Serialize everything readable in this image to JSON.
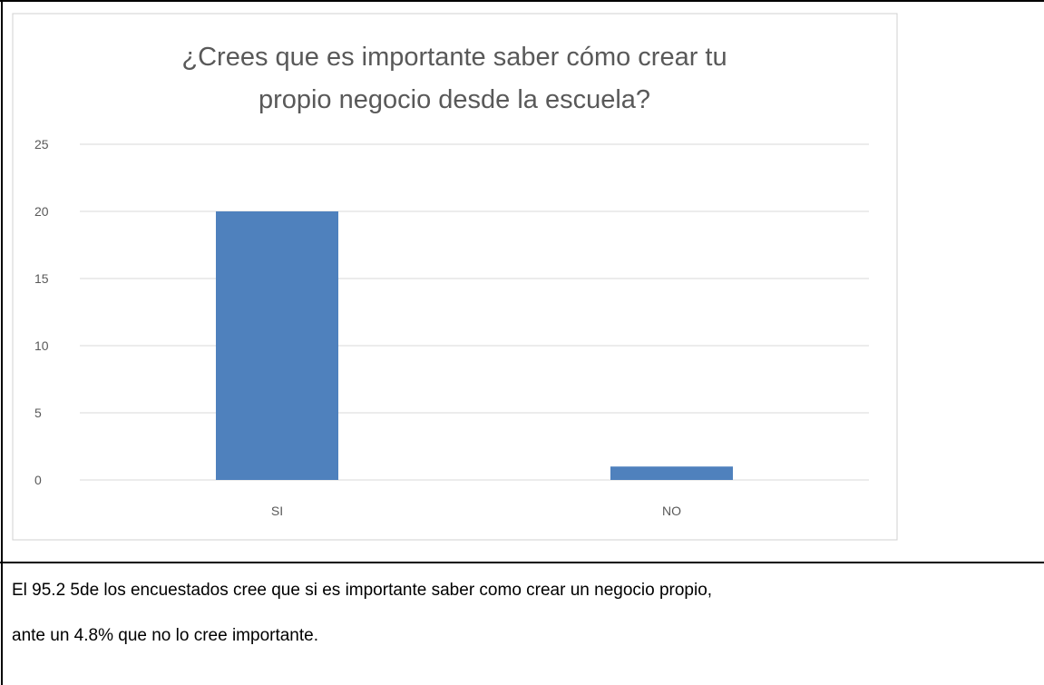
{
  "chart_data": {
    "type": "bar",
    "title_lines": [
      "¿Crees que es importante saber cómo crear tu",
      "propio negocio desde la escuela?"
    ],
    "categories": [
      "SI",
      "NO"
    ],
    "values": [
      20,
      1
    ],
    "yticks": [
      0,
      5,
      10,
      15,
      20,
      25
    ],
    "ylim": [
      0,
      25
    ],
    "xlabel": "",
    "ylabel": "",
    "grid": true,
    "bar_color": "#4f81bd",
    "gridline_color": "#d9d9d9"
  },
  "caption": {
    "line1": "El 95.2 5de los encuestados cree que si es importante saber como crear un negocio propio,",
    "line2": "ante un 4.8% que no lo cree importante."
  }
}
